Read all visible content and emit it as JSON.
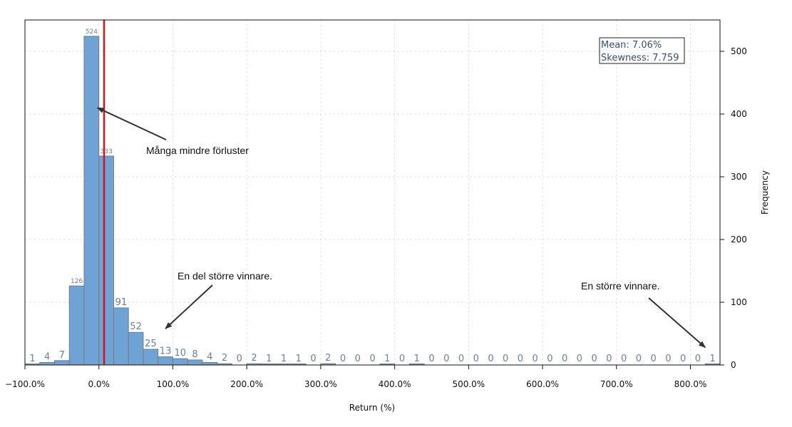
{
  "chart_data": {
    "type": "bar",
    "xlabel": "Return (%)",
    "ylabel": "Frequency",
    "x_ticks": [
      "−100.0%",
      "0.0%",
      "100.0%",
      "200.0%",
      "300.0%",
      "400.0%",
      "500.0%",
      "600.0%",
      "700.0%",
      "800.0%"
    ],
    "x_tick_values": [
      -100,
      0,
      100,
      200,
      300,
      400,
      500,
      600,
      700,
      800
    ],
    "y_ticks": [
      0,
      100,
      200,
      300,
      400,
      500
    ],
    "xlim": [
      -100,
      840
    ],
    "ylim": [
      0,
      550
    ],
    "bin_width": 20,
    "bin_starts": [
      -100,
      -80,
      -60,
      -40,
      -20,
      0,
      20,
      40,
      60,
      80,
      100,
      120,
      140,
      160,
      180,
      200,
      220,
      240,
      260,
      280,
      300,
      320,
      340,
      360,
      380,
      400,
      420,
      440,
      460,
      480,
      500,
      520,
      540,
      560,
      580,
      600,
      620,
      640,
      660,
      680,
      700,
      720,
      740,
      760,
      780,
      800,
      820
    ],
    "values": [
      1,
      4,
      7,
      126,
      524,
      333,
      91,
      52,
      25,
      13,
      10,
      8,
      4,
      2,
      0,
      2,
      1,
      1,
      1,
      0,
      2,
      0,
      0,
      0,
      1,
      0,
      1,
      0,
      0,
      0,
      0,
      0,
      0,
      0,
      0,
      0,
      0,
      0,
      0,
      0,
      0,
      0,
      0,
      0,
      0,
      0,
      1
    ],
    "bar_color": "#6fa3d6",
    "mean_line_x": 7.06,
    "mean_line_color": "#e01010",
    "grid": true,
    "stats_box": {
      "mean": "Mean: 7.06%",
      "skewness": "Skewness: 7.759",
      "position": "top-right"
    },
    "annotations": [
      {
        "text": "Många mindre förluster",
        "arrow_to": [
          -2,
          410
        ]
      },
      {
        "text": "En del större vinnare.",
        "arrow_to": [
          90,
          58
        ]
      },
      {
        "text": "En större vinnare.",
        "arrow_to": [
          820,
          28
        ]
      }
    ]
  }
}
